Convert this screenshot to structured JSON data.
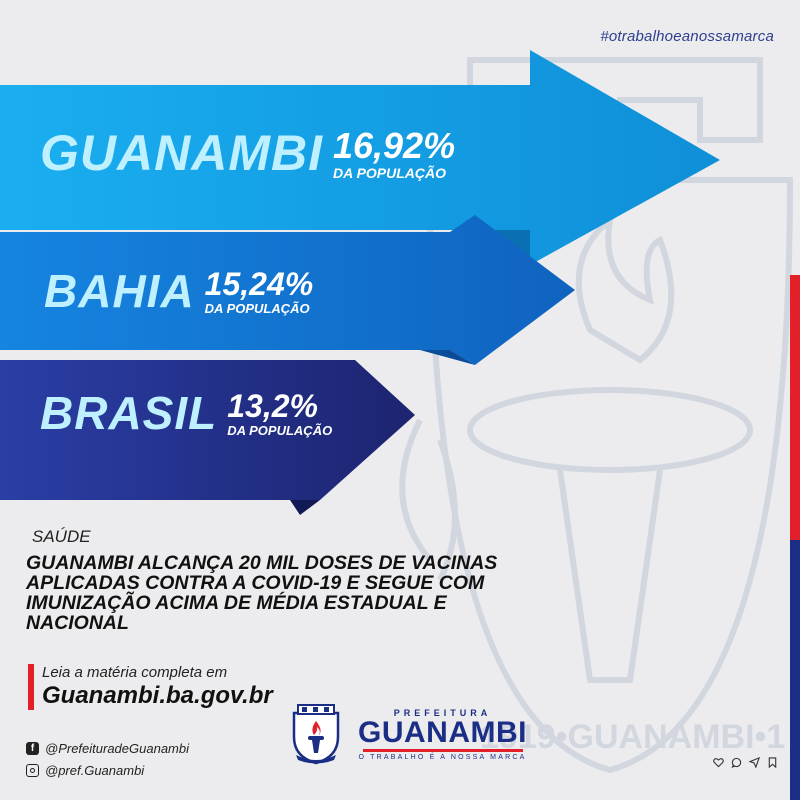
{
  "hashtag": "#otrabalhoeanossamarca",
  "stats": [
    {
      "place": "GUANAMBI",
      "percent": "16,92%",
      "subtitle": "DA POPULAÇÃO",
      "color": "#17a7e6"
    },
    {
      "place": "BAHIA",
      "percent": "15,24%",
      "subtitle": "DA POPULAÇÃO",
      "color": "#1176cf"
    },
    {
      "place": "BRASIL",
      "percent": "13,2%",
      "subtitle": "DA POPULAÇÃO",
      "color": "#26308b"
    }
  ],
  "category": "SAÚDE",
  "headline": "GUANAMBI ALCANÇA 20 MIL DOSES DE VACINAS APLICADAS CONTRA A COVID-19 E SEGUE COM IMUNIZAÇÃO ACIMA DE MÉDIA ESTADUAL E NACIONAL",
  "read_more": {
    "lead": "Leia a matéria completa em",
    "url": "Guanambi.ba.gov.br"
  },
  "social": {
    "facebook": "@PrefeituradeGuanambi",
    "instagram": "@pref.Guanambi"
  },
  "brand": {
    "top": "PREFEITURA",
    "name": "GUANAMBI",
    "tagline": "O TRABALHO É A NOSSA MARCA"
  },
  "watermark_text": "1919•GUANAMBI•1",
  "colors": {
    "accent_red": "#e3202a",
    "brand_blue": "#1b2e86",
    "light_cyan": "#bff0ff"
  }
}
